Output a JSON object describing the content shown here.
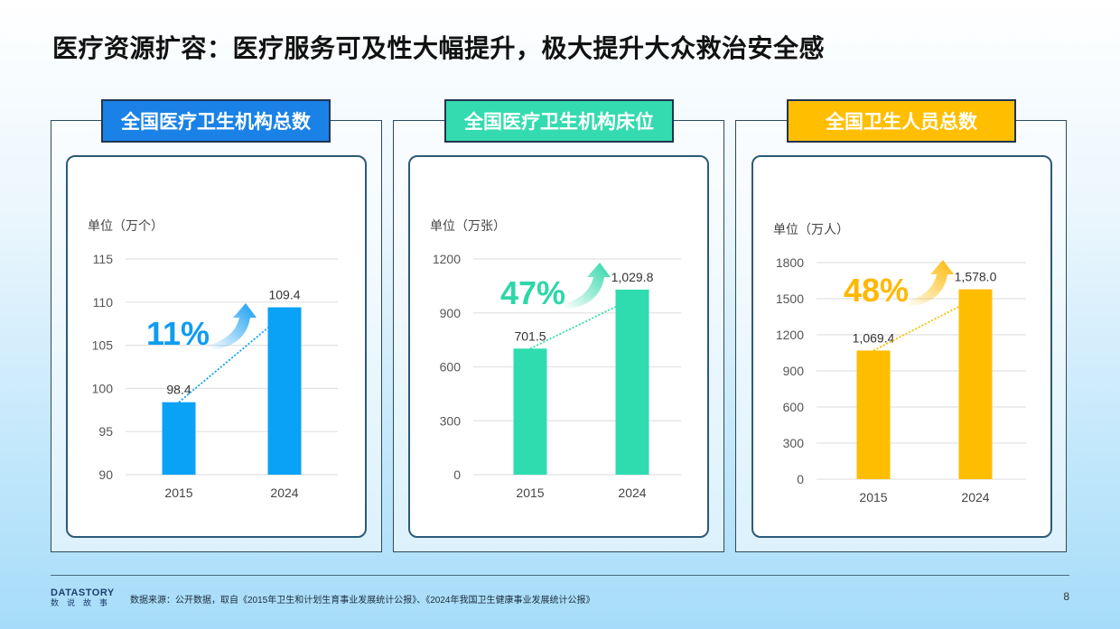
{
  "title": "医疗资源扩容：医疗服务可及性大幅提升，极大提升大众救治安全感",
  "footer": {
    "logo_text": "DATASTORY",
    "logo_sub": "数说故事",
    "source": "数据来源：公开数据，取自《2015年卫生和计划生育事业发展统计公报》、《2024年我国卫生健康事业发展统计公报》",
    "page": "8"
  },
  "chart_data": [
    {
      "type": "bar",
      "title": "全国医疗卫生机构总数",
      "title_bg": "#1a82e6",
      "color": "#0aa2f7",
      "pct_color": "#119cf0",
      "unit": "单位（万个）",
      "categories": [
        "2015",
        "2024"
      ],
      "values": [
        98.4,
        109.4
      ],
      "labels": [
        "98.4",
        "109.4"
      ],
      "ylim": [
        90,
        115
      ],
      "ticks": [
        90,
        95,
        100,
        105,
        110,
        115
      ],
      "growth": "11%",
      "grid": true
    },
    {
      "type": "bar",
      "title": "全国医疗卫生机构床位",
      "title_bg": "#35dbb0",
      "color": "#2fdcb0",
      "pct_color": "#2fd6a8",
      "unit": "单位（万张）",
      "categories": [
        "2015",
        "2024"
      ],
      "values": [
        701.5,
        1029.8
      ],
      "labels": [
        "701.5",
        "1,029.8"
      ],
      "ylim": [
        0,
        1200
      ],
      "ticks": [
        0,
        300,
        600,
        900,
        1200
      ],
      "growth": "47%",
      "grid": true
    },
    {
      "type": "bar",
      "title": "全国卫生人员总数",
      "title_bg": "#ffbf00",
      "color": "#ffbd00",
      "pct_color": "#ffb800",
      "unit": "单位（万人）",
      "categories": [
        "2015",
        "2024"
      ],
      "values": [
        1069.4,
        1578.0
      ],
      "labels": [
        "1,069.4",
        "1,578.0"
      ],
      "ylim": [
        0,
        1800
      ],
      "ticks": [
        0,
        300,
        600,
        900,
        1200,
        1500,
        1800
      ],
      "growth": "48%",
      "grid": true
    }
  ]
}
